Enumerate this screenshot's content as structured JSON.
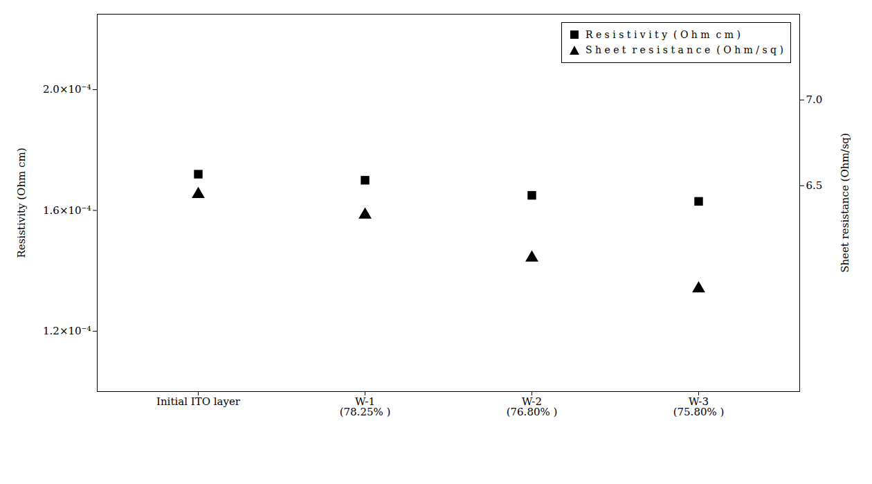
{
  "chart_data": {
    "type": "scatter",
    "categories": [
      "Initial ITO layer",
      "W-1\n(78.25% )",
      "W-2\n(76.80% )",
      "W-3\n(75.80% )"
    ],
    "series": [
      {
        "name": "R e s i s t i v i t y  ( O h m  c m )",
        "color": "#000000",
        "marker": "square",
        "values": [
          0.000172,
          0.00017,
          0.000165,
          0.000163
        ]
      },
      {
        "name": "S h e e t  r e s i s t a n c e  ( O h m / s q )",
        "color": "#000000",
        "marker": "triangle",
        "axis": "y2",
        "values": [
          6.45,
          6.33,
          6.08,
          5.9
        ]
      }
    ],
    "ylabel": "Resistivity (Ohm cm)",
    "y2label": "Sheet resistance (Ohm/sq)",
    "ylim": [
      0.0001,
      0.000225
    ],
    "yticks": [
      {
        "value": 0.00012,
        "label": "1.2×10⁻⁴"
      },
      {
        "value": 0.00016,
        "label": "1.6×10⁻⁴"
      },
      {
        "value": 0.0002,
        "label": "2.0×10⁻⁴"
      }
    ],
    "y2lim": [
      5.3,
      7.5
    ],
    "y2ticks": [
      6.5,
      {
        "value": 7.0,
        "label": "7.0"
      }
    ],
    "legend": "upper right",
    "grid": false
  }
}
